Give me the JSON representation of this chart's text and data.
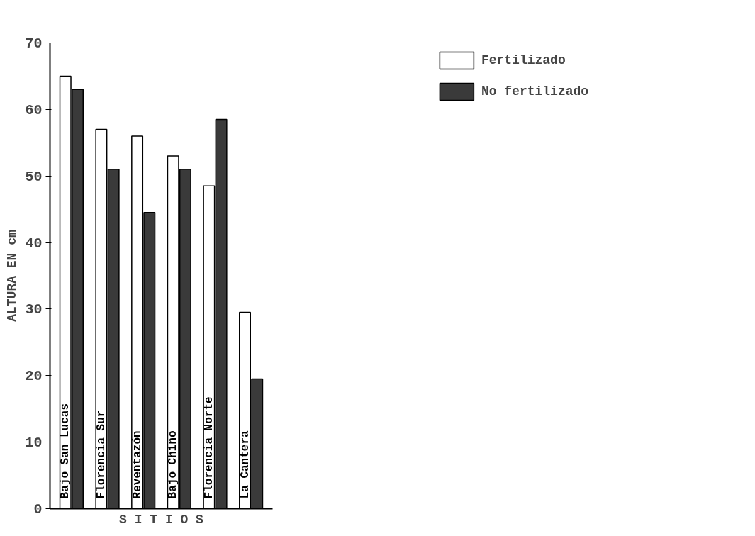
{
  "chart_data": {
    "type": "bar",
    "xlabel": "S I T I O S",
    "ylabel": "ALTURA EN cm",
    "categories": [
      "Bajo San Lucas",
      "Florencia Sur",
      "Reventazón",
      "Bajo Chino",
      "Florencia Norte",
      "La Cantera"
    ],
    "series": [
      {
        "name": "Fertilizado",
        "color": "#ffffff",
        "values": [
          65,
          57,
          56,
          53,
          48.5,
          29.5
        ]
      },
      {
        "name": "No fertilizado",
        "color": "#3a3a3a",
        "values": [
          63,
          51,
          44.5,
          51,
          58.5,
          19.5
        ]
      }
    ],
    "ylim": [
      0,
      70
    ],
    "yticks": [
      0,
      10,
      20,
      30,
      40,
      50,
      60,
      70
    ],
    "grid": false,
    "legend": "top right"
  }
}
